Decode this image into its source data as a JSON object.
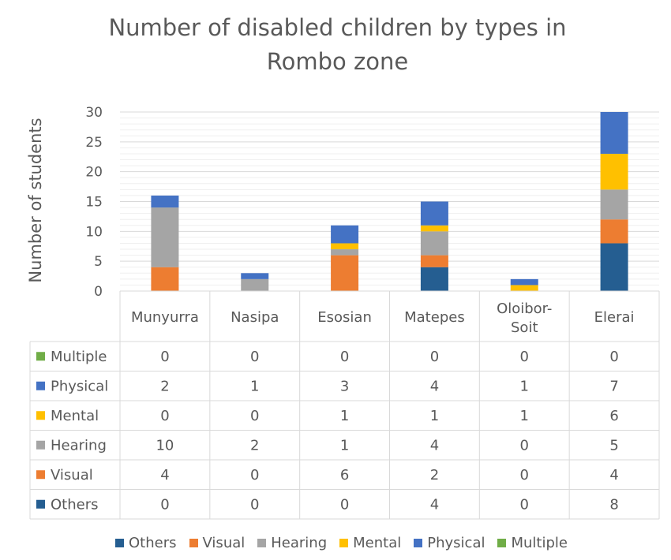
{
  "chart_data": {
    "type": "bar",
    "stacked": true,
    "title_lines": [
      "Number of disabled children by types in",
      "Rombo zone"
    ],
    "ylabel": "Number of students",
    "xlabel": "",
    "ylim": [
      0,
      30
    ],
    "yticks": [
      0,
      5,
      10,
      15,
      20,
      25,
      30
    ],
    "grid": true,
    "legend_position": "bottom",
    "categories": [
      "Munyurra",
      "Nasipa",
      "Esosian",
      "Matepes",
      "Oloibor-Soit",
      "Elerai"
    ],
    "series": [
      {
        "name": "Others",
        "color": "#255E91",
        "values": [
          0,
          0,
          0,
          4,
          0,
          8
        ]
      },
      {
        "name": "Visual",
        "color": "#ED7D31",
        "values": [
          4,
          0,
          6,
          2,
          0,
          4
        ]
      },
      {
        "name": "Hearing",
        "color": "#A5A5A5",
        "values": [
          10,
          2,
          1,
          4,
          0,
          5
        ]
      },
      {
        "name": "Mental",
        "color": "#FFC000",
        "values": [
          0,
          0,
          1,
          1,
          1,
          6
        ]
      },
      {
        "name": "Physical",
        "color": "#4472C4",
        "values": [
          2,
          1,
          3,
          4,
          1,
          7
        ]
      },
      {
        "name": "Multiple",
        "color": "#70AD47",
        "values": [
          0,
          0,
          0,
          0,
          0,
          0
        ]
      }
    ],
    "table_row_order": [
      "Multiple",
      "Physical",
      "Mental",
      "Hearing",
      "Visual",
      "Others"
    ],
    "legend_order": [
      "Others",
      "Visual",
      "Hearing",
      "Mental",
      "Physical",
      "Multiple"
    ]
  }
}
